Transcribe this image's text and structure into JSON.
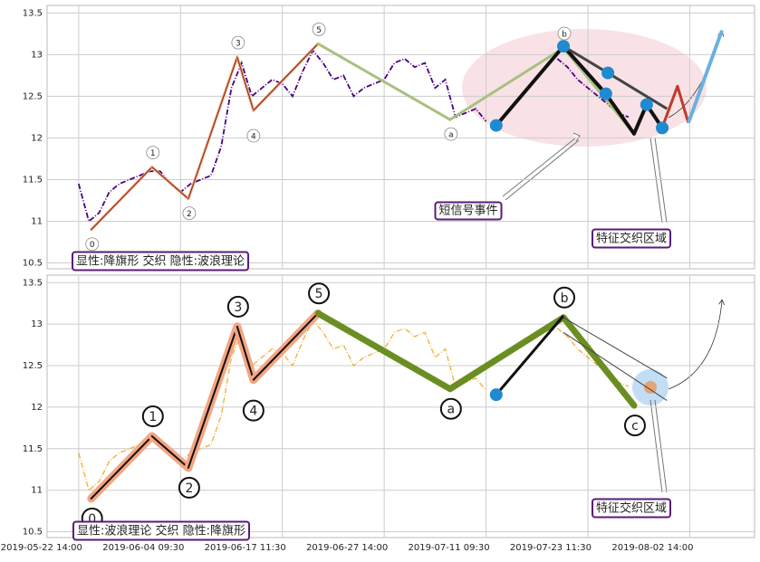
{
  "chart_data": [
    {
      "type": "line",
      "xlim": [
        -9.3,
        199.1
      ],
      "ylim": [
        10.43,
        13.59
      ],
      "yticks": [
        10.5,
        11.0,
        11.5,
        12.0,
        12.5,
        13.0,
        13.5
      ],
      "grid": true,
      "series": [
        {
          "color": "#4b0082",
          "x": [
            0,
            3,
            6,
            9,
            12,
            15,
            18,
            21,
            24,
            27,
            30,
            33,
            36,
            39,
            42,
            45,
            48,
            51,
            54,
            57,
            60,
            63,
            66,
            69,
            72,
            75,
            78,
            81,
            84,
            87,
            90,
            93,
            96,
            99,
            102,
            105,
            108,
            111,
            114,
            117,
            120,
            123,
            141,
            144,
            147,
            150,
            153,
            156,
            159,
            162
          ],
          "values": [
            11.45,
            11.0,
            11.1,
            11.35,
            11.45,
            11.5,
            11.55,
            11.6,
            11.6,
            11.45,
            11.35,
            11.45,
            11.5,
            11.55,
            11.9,
            12.6,
            12.9,
            12.5,
            12.6,
            12.7,
            12.65,
            12.5,
            12.8,
            13.05,
            12.9,
            12.7,
            12.75,
            12.5,
            12.6,
            12.65,
            12.7,
            12.9,
            12.95,
            12.85,
            12.9,
            12.6,
            12.7,
            12.25,
            12.3,
            12.35,
            12.2,
            null,
            12.95,
            12.85,
            12.7,
            12.6,
            12.5,
            12.4,
            12.3,
            12.25
          ]
        }
      ],
      "waves": {
        "labels": [
          "0",
          "1",
          "2",
          "3",
          "4",
          "5",
          "a",
          "b"
        ],
        "x": [
          3.7,
          21.6,
          32.3,
          46.7,
          51.5,
          70.5,
          109.4,
          142.8
        ],
        "y": [
          10.9,
          11.65,
          11.27,
          12.97,
          12.33,
          13.13,
          12.22,
          13.08
        ]
      },
      "wave_end": {
        "x": 163.6,
        "y": 12.05
      },
      "lines": [
        {
          "color": "#111",
          "width": 4,
          "x": [
            123,
            142.8,
            155.3,
            163.6,
            167.3,
            171.9
          ],
          "y": [
            12.15,
            13.1,
            12.53,
            12.05,
            12.4,
            12.12
          ]
        },
        {
          "color": "#444",
          "width": 3,
          "x": [
            142.8,
            155.9,
            173.3
          ],
          "y": [
            13.1,
            12.78,
            12.35
          ]
        },
        {
          "color": "#c0392b",
          "width": 3,
          "x": [
            172.4,
            176.4,
            179.6
          ],
          "y": [
            12.18,
            12.62,
            12.18
          ]
        },
        {
          "color": "#6ab0e0",
          "width": 4,
          "x": [
            179.6,
            189.5
          ],
          "y": [
            12.18,
            13.29
          ]
        }
      ],
      "dots": {
        "x": [
          123,
          142.8,
          155.9,
          155.3,
          167.3,
          171.9
        ],
        "y": [
          12.15,
          13.1,
          12.78,
          12.53,
          12.4,
          12.12
        ]
      },
      "annotations": [
        "短信号事件",
        "特征交织区域",
        "显性:降旗形 交织 隐性:波浪理论"
      ]
    },
    {
      "type": "line",
      "xlim": [
        -9.3,
        199.1
      ],
      "ylim": [
        10.43,
        13.59
      ],
      "yticks": [
        10.5,
        11.0,
        11.5,
        12.0,
        12.5,
        13.0,
        13.5
      ],
      "grid": true,
      "xticks": [
        {
          "value": 0,
          "label": "2019-05-22 14:00"
        },
        {
          "value": 30,
          "label": "2019-06-04 09:30"
        },
        {
          "value": 60,
          "label": "2019-06-17 11:30"
        },
        {
          "value": 90,
          "label": "2019-06-27 14:00"
        },
        {
          "value": 120,
          "label": "2019-07-11 09:30"
        },
        {
          "value": 150,
          "label": "2019-07-23 11:30"
        },
        {
          "value": 180,
          "label": "2019-08-02 14:00"
        }
      ],
      "series": [
        {
          "color": "#f0b030",
          "x": [
            0,
            3,
            6,
            9,
            12,
            15,
            18,
            21,
            24,
            27,
            30,
            33,
            36,
            39,
            42,
            45,
            48,
            51,
            54,
            57,
            60,
            63,
            66,
            69,
            72,
            75,
            78,
            81,
            84,
            87,
            90,
            93,
            96,
            99,
            102,
            105,
            108,
            111,
            114,
            117,
            120,
            123,
            141,
            144,
            147,
            150,
            153,
            156,
            159,
            162
          ],
          "values": [
            11.45,
            11.0,
            11.1,
            11.35,
            11.45,
            11.5,
            11.55,
            11.6,
            11.6,
            11.45,
            11.35,
            11.45,
            11.5,
            11.55,
            11.9,
            12.6,
            12.9,
            12.5,
            12.6,
            12.7,
            12.65,
            12.5,
            12.8,
            13.05,
            12.9,
            12.7,
            12.75,
            12.5,
            12.6,
            12.65,
            12.7,
            12.9,
            12.95,
            12.85,
            12.9,
            12.6,
            12.7,
            12.25,
            12.3,
            12.35,
            12.2,
            null,
            12.95,
            12.85,
            12.7,
            12.6,
            12.5,
            12.4,
            12.3,
            12.25
          ]
        }
      ],
      "waves": {
        "labels": [
          "0",
          "1",
          "2",
          "3",
          "4",
          "5",
          "a",
          "b",
          "c"
        ],
        "x": [
          3.7,
          21.6,
          32.3,
          46.7,
          51.5,
          70.5,
          109.4,
          142.8,
          163.6
        ],
        "y": [
          10.9,
          11.65,
          11.27,
          12.97,
          12.33,
          13.13,
          12.22,
          13.08,
          12.02
        ]
      },
      "lines": [
        {
          "color": "#111",
          "width": 3,
          "x": [
            123,
            142.8
          ],
          "y": [
            12.15,
            13.1
          ]
        },
        {
          "color": "#444",
          "width": 1,
          "x": [
            142.8,
            173.3
          ],
          "y": [
            13.08,
            12.35
          ]
        },
        {
          "color": "#444",
          "width": 1,
          "x": [
            142.8,
            173.3
          ],
          "y": [
            12.9,
            12.08
          ]
        }
      ],
      "dots": {
        "x": [
          123
        ],
        "y": [
          12.15
        ]
      },
      "annotations": [
        "特征交织区域",
        "显性:波浪理论 交织 隐性:降旗形"
      ]
    }
  ]
}
